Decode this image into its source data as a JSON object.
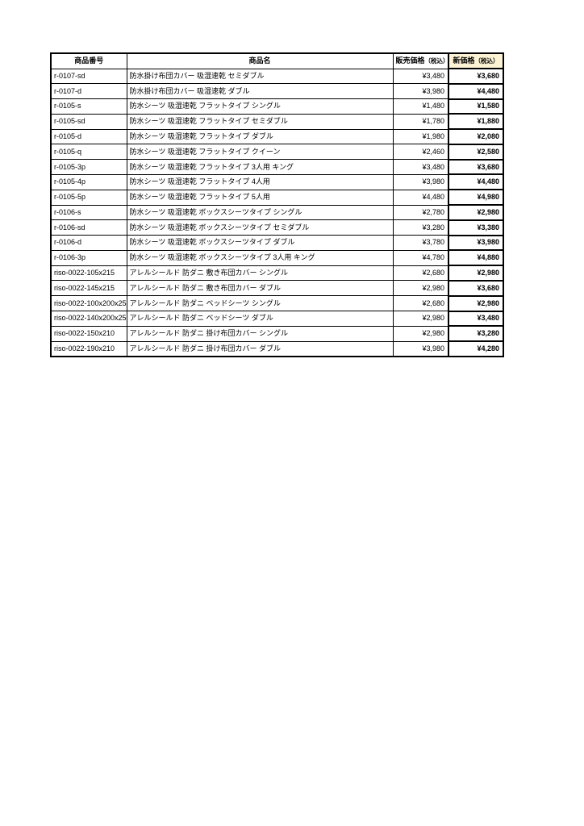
{
  "page": {
    "background": "#ffffff"
  },
  "table": {
    "accent": {
      "new_price_header_bg": "#fcf2d4",
      "border_color": "#000000",
      "text_color": "#000000"
    },
    "columns": {
      "code": {
        "label": "商品番号"
      },
      "name": {
        "label": "商品名"
      },
      "price": {
        "label": "販売価格",
        "suffix": "（税込）"
      },
      "new_price": {
        "label": "新価格",
        "suffix": "（税込）"
      }
    },
    "rows": [
      {
        "code": "r-0107-sd",
        "name": "防水掛け布団カバー 吸湿速乾 セミダブル",
        "price": "¥3,480",
        "new_price": "¥3,680"
      },
      {
        "code": "r-0107-d",
        "name": "防水掛け布団カバー 吸湿速乾 ダブル",
        "price": "¥3,980",
        "new_price": "¥4,480"
      },
      {
        "code": "r-0105-s",
        "name": "防水シーツ 吸湿速乾 フラットタイプ シングル",
        "price": "¥1,480",
        "new_price": "¥1,580"
      },
      {
        "code": "r-0105-sd",
        "name": "防水シーツ 吸湿速乾 フラットタイプ セミダブル",
        "price": "¥1,780",
        "new_price": "¥1,880"
      },
      {
        "code": "r-0105-d",
        "name": "防水シーツ 吸湿速乾 フラットタイプ ダブル",
        "price": "¥1,980",
        "new_price": "¥2,080"
      },
      {
        "code": "r-0105-q",
        "name": "防水シーツ 吸湿速乾 フラットタイプ クイーン",
        "price": "¥2,460",
        "new_price": "¥2,580"
      },
      {
        "code": "r-0105-3p",
        "name": "防水シーツ 吸湿速乾 フラットタイプ 3人用 キング",
        "price": "¥3,480",
        "new_price": "¥3,680"
      },
      {
        "code": "r-0105-4p",
        "name": "防水シーツ 吸湿速乾 フラットタイプ 4人用",
        "price": "¥3,980",
        "new_price": "¥4,480"
      },
      {
        "code": "r-0105-5p",
        "name": "防水シーツ 吸湿速乾 フラットタイプ 5人用",
        "price": "¥4,480",
        "new_price": "¥4,980"
      },
      {
        "code": "r-0106-s",
        "name": "防水シーツ 吸湿速乾 ボックスシーツタイプ シングル",
        "price": "¥2,780",
        "new_price": "¥2,980"
      },
      {
        "code": "r-0106-sd",
        "name": "防水シーツ 吸湿速乾 ボックスシーツタイプ セミダブル",
        "price": "¥3,280",
        "new_price": "¥3,380"
      },
      {
        "code": "r-0106-d",
        "name": "防水シーツ 吸湿速乾 ボックスシーツタイプ ダブル",
        "price": "¥3,780",
        "new_price": "¥3,980"
      },
      {
        "code": "r-0106-3p",
        "name": "防水シーツ 吸湿速乾 ボックスシーツタイプ 3人用 キング",
        "price": "¥4,780",
        "new_price": "¥4,880"
      },
      {
        "code": "riso-0022-105x215",
        "name": "アレルシールド 防ダニ 敷き布団カバー シングル",
        "price": "¥2,680",
        "new_price": "¥2,980"
      },
      {
        "code": "riso-0022-145x215",
        "name": "アレルシールド 防ダニ 敷き布団カバー ダブル",
        "price": "¥2,980",
        "new_price": "¥3,680"
      },
      {
        "code": "riso-0022-100x200x25",
        "name": "アレルシールド 防ダニ ベッドシーツ シングル",
        "price": "¥2,680",
        "new_price": "¥2,980"
      },
      {
        "code": "riso-0022-140x200x25",
        "name": "アレルシールド 防ダニ ベッドシーツ ダブル",
        "price": "¥2,980",
        "new_price": "¥3,480"
      },
      {
        "code": "riso-0022-150x210",
        "name": "アレルシールド 防ダニ 掛け布団カバー シングル",
        "price": "¥2,980",
        "new_price": "¥3,280"
      },
      {
        "code": "riso-0022-190x210",
        "name": "アレルシールド 防ダニ 掛け布団カバー ダブル",
        "price": "¥3,980",
        "new_price": "¥4,280"
      }
    ]
  }
}
